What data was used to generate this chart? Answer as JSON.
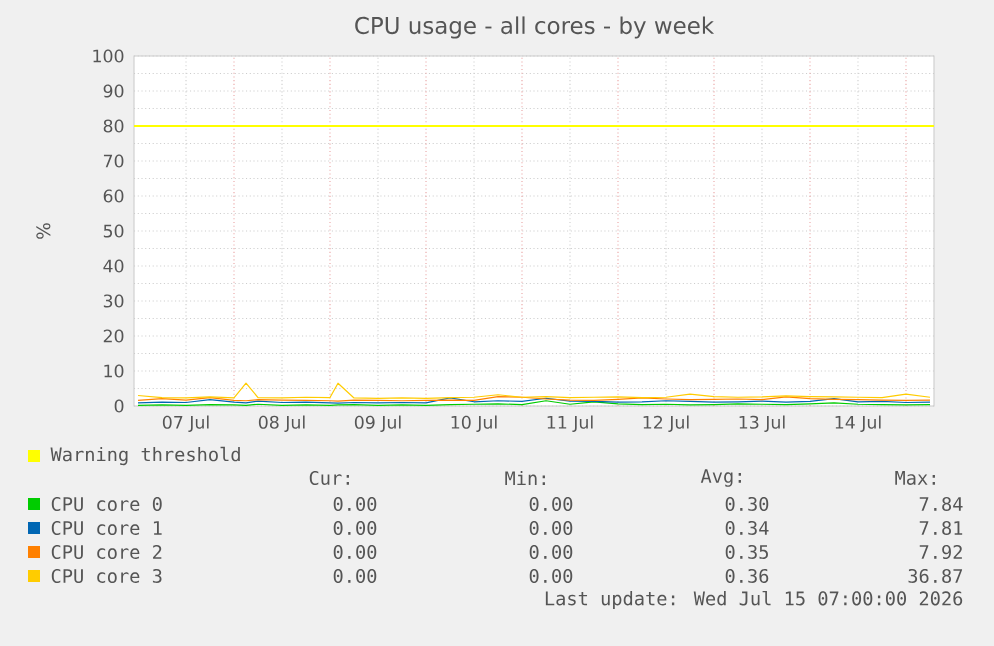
{
  "chart_data": {
    "type": "line",
    "title": "CPU usage - all cores - by week",
    "ylabel": "%",
    "x": [
      "2026-07-07T00:00",
      "2026-07-07T06:00",
      "2026-07-07T12:00",
      "2026-07-07T18:00",
      "2026-07-08T00:00",
      "2026-07-08T03:00",
      "2026-07-08T06:00",
      "2026-07-08T12:00",
      "2026-07-08T18:00",
      "2026-07-09T00:00",
      "2026-07-09T02:00",
      "2026-07-09T06:00",
      "2026-07-09T12:00",
      "2026-07-09T18:00",
      "2026-07-10T00:00",
      "2026-07-10T06:00",
      "2026-07-10T12:00",
      "2026-07-10T18:00",
      "2026-07-11T00:00",
      "2026-07-11T06:00",
      "2026-07-11T12:00",
      "2026-07-11T18:00",
      "2026-07-12T00:00",
      "2026-07-12T06:00",
      "2026-07-12T12:00",
      "2026-07-12T18:00",
      "2026-07-13T00:00",
      "2026-07-13T06:00",
      "2026-07-13T12:00",
      "2026-07-13T18:00",
      "2026-07-14T00:00",
      "2026-07-14T06:00",
      "2026-07-14T12:00",
      "2026-07-14T18:00",
      "2026-07-15T00:00",
      "2026-07-15T06:00"
    ],
    "series": [
      {
        "name": "CPU core 0",
        "color": "#00cc00",
        "values": [
          0.2,
          0.3,
          0.2,
          0.4,
          0.3,
          0.2,
          0.5,
          0.2,
          0.3,
          0.2,
          0.3,
          0.4,
          0.2,
          0.3,
          0.2,
          0.4,
          0.5,
          0.6,
          0.4,
          1.5,
          0.5,
          1.2,
          0.6,
          0.4,
          0.5,
          0.3,
          0.4,
          0.6,
          0.5,
          0.4,
          0.6,
          0.9,
          0.5,
          0.4,
          0.3,
          0.4
        ]
      },
      {
        "name": "CPU core 1",
        "color": "#0066b3",
        "values": [
          0.9,
          1.1,
          1.0,
          1.8,
          1.1,
          0.9,
          1.4,
          1.0,
          1.1,
          0.9,
          0.8,
          1.0,
          0.9,
          1.0,
          0.9,
          2.3,
          1.2,
          1.5,
          1.3,
          2.2,
          1.4,
          1.3,
          1.1,
          1.2,
          1.5,
          1.3,
          1.1,
          1.2,
          1.4,
          1.1,
          1.3,
          2.1,
          1.2,
          1.3,
          1.0,
          1.1
        ]
      },
      {
        "name": "CPU core 2",
        "color": "#ff8000",
        "values": [
          1.6,
          2.1,
          1.7,
          2.4,
          1.6,
          1.5,
          1.8,
          1.7,
          1.6,
          1.5,
          1.4,
          1.7,
          1.6,
          1.5,
          1.6,
          1.7,
          1.6,
          2.7,
          2.5,
          2.0,
          1.7,
          1.6,
          1.9,
          2.3,
          2.0,
          1.8,
          1.9,
          2.0,
          1.8,
          2.6,
          2.1,
          1.9,
          1.8,
          1.7,
          1.6,
          1.7
        ]
      },
      {
        "name": "CPU core 3",
        "color": "#ffcc00",
        "values": [
          3.0,
          2.4,
          2.3,
          2.6,
          2.3,
          6.5,
          2.4,
          2.3,
          2.5,
          2.4,
          6.5,
          2.3,
          2.2,
          2.3,
          2.2,
          2.4,
          2.5,
          3.2,
          2.5,
          2.7,
          2.4,
          2.5,
          2.6,
          2.4,
          2.5,
          3.4,
          2.7,
          2.5,
          2.6,
          2.9,
          2.7,
          2.6,
          2.5,
          2.4,
          3.4,
          2.5
        ]
      }
    ],
    "xlim": [
      "2026-07-06T23:00",
      "2026-07-15T07:00"
    ],
    "xticks": [
      {
        "value": "2026-07-07T12:00",
        "label": "07 Jul"
      },
      {
        "value": "2026-07-08T00:00",
        "label": null
      },
      {
        "value": "2026-07-08T12:00",
        "label": "08 Jul"
      },
      {
        "value": "2026-07-09T00:00",
        "label": null
      },
      {
        "value": "2026-07-09T12:00",
        "label": "09 Jul"
      },
      {
        "value": "2026-07-10T00:00",
        "label": null
      },
      {
        "value": "2026-07-10T12:00",
        "label": "10 Jul"
      },
      {
        "value": "2026-07-11T00:00",
        "label": null
      },
      {
        "value": "2026-07-11T12:00",
        "label": "11 Jul"
      },
      {
        "value": "2026-07-12T00:00",
        "label": null
      },
      {
        "value": "2026-07-12T12:00",
        "label": "12 Jul"
      },
      {
        "value": "2026-07-13T00:00",
        "label": null
      },
      {
        "value": "2026-07-13T12:00",
        "label": "13 Jul"
      },
      {
        "value": "2026-07-14T00:00",
        "label": null
      },
      {
        "value": "2026-07-14T12:00",
        "label": "14 Jul"
      },
      {
        "value": "2026-07-15T00:00",
        "label": null
      }
    ],
    "ylim": [
      0,
      100
    ],
    "yticks": [
      0,
      10,
      20,
      30,
      40,
      50,
      60,
      70,
      80,
      90,
      100
    ],
    "grid": true,
    "legend": "bottom",
    "marker": "none",
    "line_style": "solid",
    "ref_lines": [
      {
        "axis": "y",
        "value": 80,
        "label": "Warning threshold",
        "color": "#ffff00"
      }
    ],
    "annotations": [
      "Cur:",
      "Min:",
      "Avg:",
      "Max:",
      "0.00",
      "0.00",
      "0.30",
      "7.84",
      "0.00",
      "0.00",
      "0.34",
      "7.81",
      "0.00",
      "0.00",
      "0.35",
      "7.92",
      "0.00",
      "0.00",
      "0.36",
      "36.87",
      "Last update: Wed Jul 15 07:00:00 2026"
    ]
  }
}
